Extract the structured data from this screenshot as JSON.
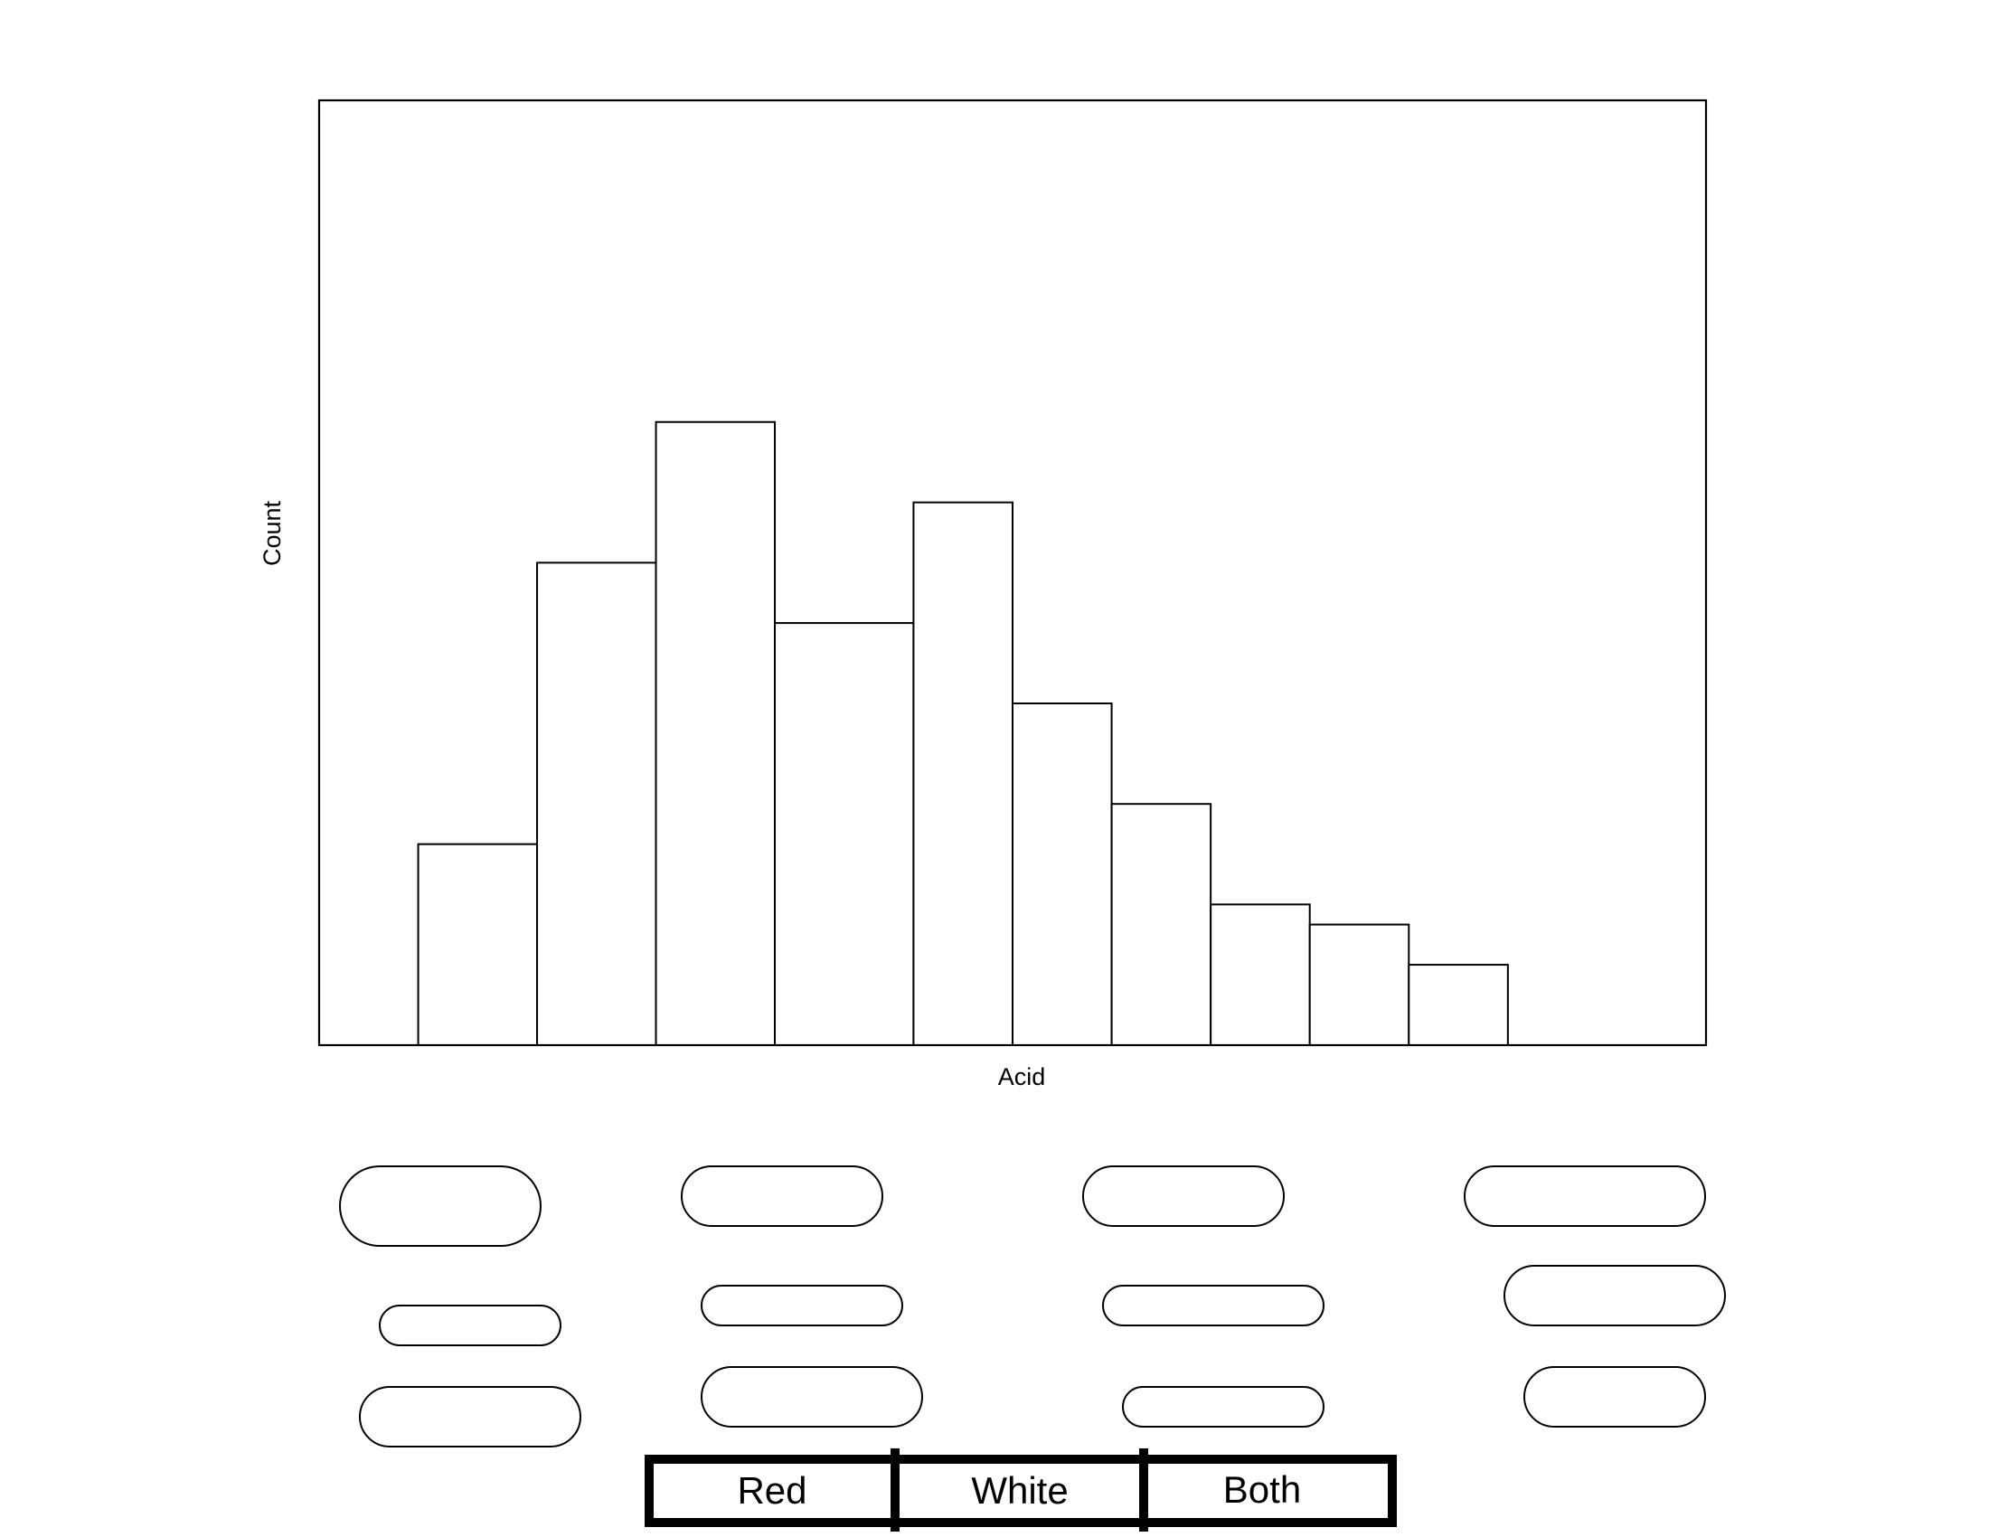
{
  "chart_data": {
    "type": "bar",
    "title": "",
    "xlabel": "Acid",
    "ylabel": "Count",
    "ylim": [
      0,
      47
    ],
    "grid": false,
    "legend": "none",
    "bins": [
      {
        "start": 1,
        "end": 2.2,
        "count": 10
      },
      {
        "start": 2.2,
        "end": 3.4,
        "count": 24
      },
      {
        "start": 3.4,
        "end": 4.6,
        "count": 31
      },
      {
        "start": 4.6,
        "end": 6.0,
        "count": 21
      },
      {
        "start": 6.0,
        "end": 7.0,
        "count": 27
      },
      {
        "start": 7.0,
        "end": 8.0,
        "count": 17
      },
      {
        "start": 8.0,
        "end": 9.0,
        "count": 12
      },
      {
        "start": 9.0,
        "end": 10.0,
        "count": 7
      },
      {
        "start": 10.0,
        "end": 11.0,
        "count": 6
      },
      {
        "start": 11.0,
        "end": 12.0,
        "count": 4
      }
    ],
    "xlim": [
      0,
      14
    ],
    "colors": {
      "stroke": "#000000",
      "fill": "#ffffff"
    }
  },
  "answer_slots": {
    "count": 12
  },
  "segmented_control": {
    "options": [
      "Red",
      "White",
      "Both"
    ]
  }
}
